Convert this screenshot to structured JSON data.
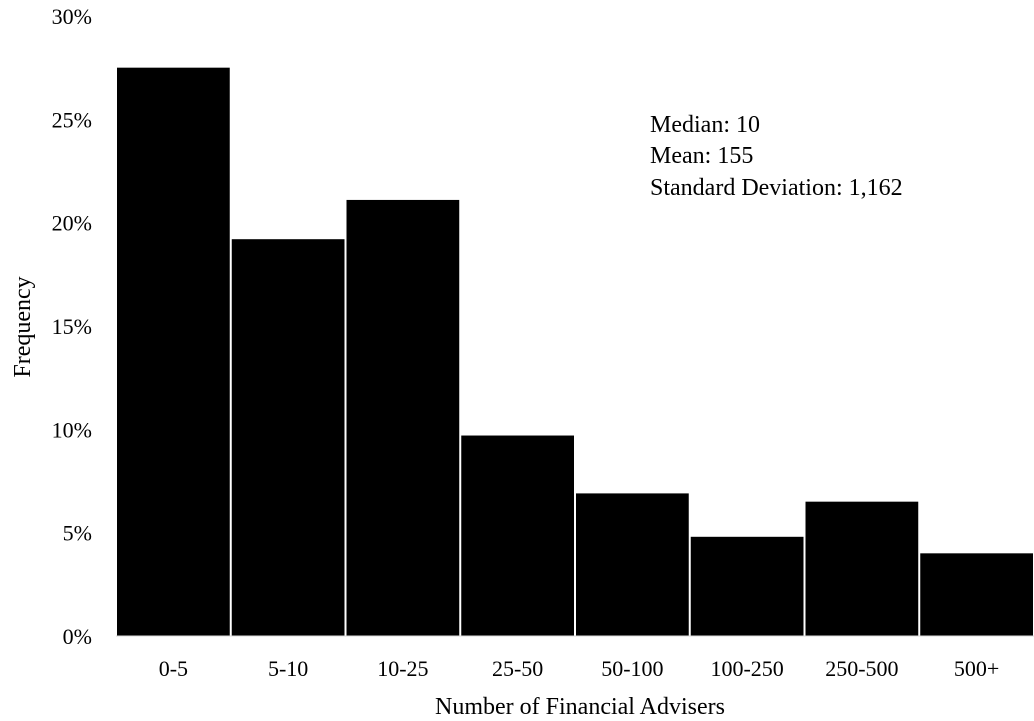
{
  "chart_data": {
    "type": "bar",
    "categories": [
      "0-5",
      "5-10",
      "10-25",
      "25-50",
      "50-100",
      "100-250",
      "250-500",
      "500+"
    ],
    "values": [
      27.5,
      19.2,
      21.1,
      9.7,
      6.9,
      4.8,
      6.5,
      4.0
    ],
    "xlabel": "Number of Financial Advisers",
    "ylabel": "Frequency",
    "ylim": [
      0,
      30
    ],
    "yticks": [
      "0%",
      "5%",
      "10%",
      "15%",
      "20%",
      "25%",
      "30%"
    ],
    "ytick_values": [
      0,
      5,
      10,
      15,
      20,
      25,
      30
    ],
    "annotations": [
      "Median: 10",
      "Mean: 155",
      "Standard Deviation: 1,162"
    ],
    "grid": false,
    "legend": "none",
    "bar_color": "#000000",
    "bar_gap_color": "#ffffff"
  }
}
